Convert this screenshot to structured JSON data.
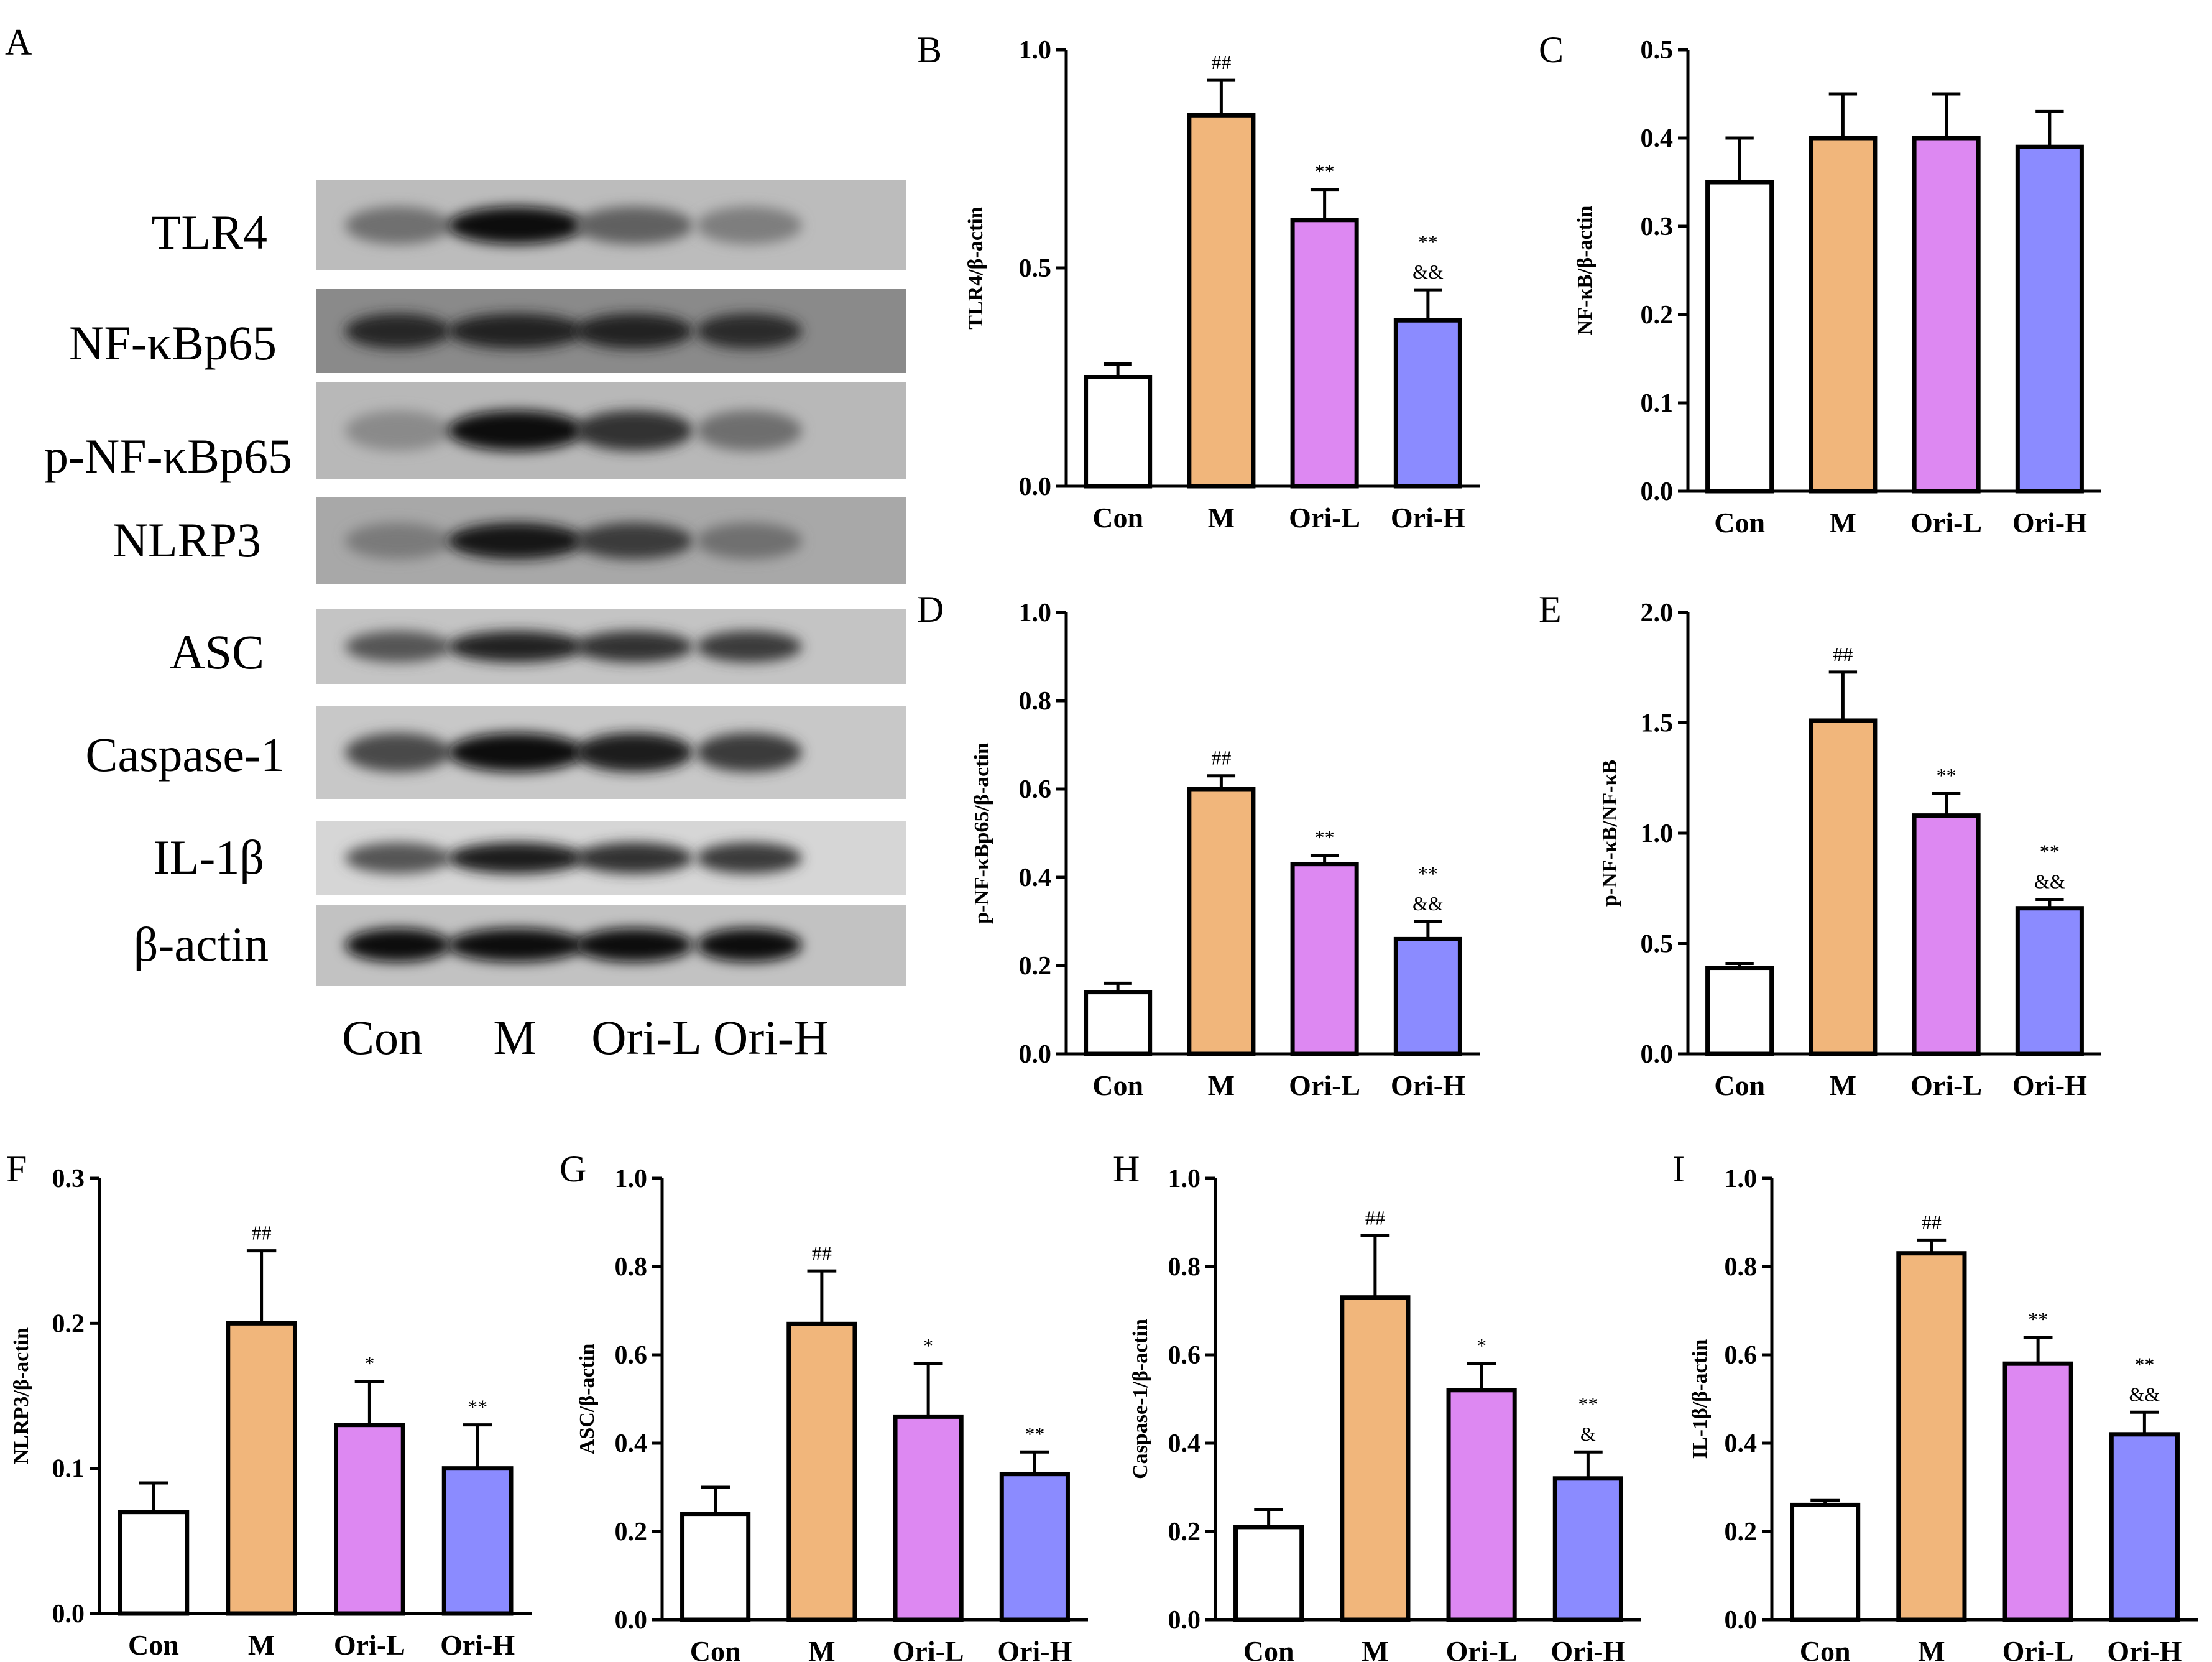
{
  "colors": {
    "Con": "#ffffff",
    "M": "#f1b67b",
    "Ori-L": "#dd88f2",
    "Ori-H": "#8b8bff",
    "axis": "#000000"
  },
  "blot": {
    "letter": "A",
    "bands": [
      "TLR4",
      "NF-κBp65",
      "p-NF-κBp65",
      "NLRP3",
      "ASC",
      "Caspase-1",
      "IL-1β",
      "β-actin"
    ],
    "lanes": [
      "Con",
      "M",
      "Ori-L",
      "Ori-H"
    ]
  },
  "chart_data": [
    {
      "id": "B",
      "letter": "B",
      "type": "bar",
      "categories": [
        "Con",
        "M",
        "Ori-L",
        "Ori-H"
      ],
      "values": [
        0.25,
        0.85,
        0.61,
        0.38
      ],
      "errors": [
        0.03,
        0.08,
        0.07,
        0.07
      ],
      "annotations": [
        [],
        [
          "##"
        ],
        [
          "**"
        ],
        [
          "&&",
          "**"
        ]
      ],
      "ylabel": "TLR4/β-actin",
      "ylim": [
        0,
        1.0
      ],
      "yticks": [
        0,
        0.5,
        1.0
      ],
      "ytick_labels": [
        "0.0",
        "0.5",
        "1.0"
      ]
    },
    {
      "id": "C",
      "letter": "C",
      "type": "bar",
      "categories": [
        "Con",
        "M",
        "Ori-L",
        "Ori-H"
      ],
      "values": [
        0.35,
        0.4,
        0.4,
        0.39
      ],
      "errors": [
        0.05,
        0.05,
        0.05,
        0.04
      ],
      "annotations": [
        [],
        [],
        [],
        []
      ],
      "ylabel": "NF-κB/β-actin",
      "ylim": [
        0,
        0.5
      ],
      "yticks": [
        0,
        0.1,
        0.2,
        0.3,
        0.4,
        0.5
      ],
      "ytick_labels": [
        "0.0",
        "0.1",
        "0.2",
        "0.3",
        "0.4",
        "0.5"
      ]
    },
    {
      "id": "D",
      "letter": "D",
      "type": "bar",
      "categories": [
        "Con",
        "M",
        "Ori-L",
        "Ori-H"
      ],
      "values": [
        0.14,
        0.6,
        0.43,
        0.26
      ],
      "errors": [
        0.02,
        0.03,
        0.02,
        0.04
      ],
      "annotations": [
        [],
        [
          "##"
        ],
        [
          "**"
        ],
        [
          "&&",
          "**"
        ]
      ],
      "ylabel": "p-NF-κBp65/β-actin",
      "ylim": [
        0,
        1.0
      ],
      "yticks": [
        0,
        0.2,
        0.4,
        0.6,
        0.8,
        1.0
      ],
      "ytick_labels": [
        "0.0",
        "0.2",
        "0.4",
        "0.6",
        "0.8",
        "1.0"
      ]
    },
    {
      "id": "E",
      "letter": "E",
      "type": "bar",
      "categories": [
        "Con",
        "M",
        "Ori-L",
        "Ori-H"
      ],
      "values": [
        0.39,
        1.51,
        1.08,
        0.66
      ],
      "errors": [
        0.02,
        0.22,
        0.1,
        0.04
      ],
      "annotations": [
        [],
        [
          "##"
        ],
        [
          "**"
        ],
        [
          "&&",
          "**"
        ]
      ],
      "ylabel": "p-NF-κB/NF-κB",
      "ylim": [
        0,
        2.0
      ],
      "yticks": [
        0,
        0.5,
        1.0,
        1.5,
        2.0
      ],
      "ytick_labels": [
        "0.0",
        "0.5",
        "1.0",
        "1.5",
        "2.0"
      ]
    },
    {
      "id": "F",
      "letter": "F",
      "type": "bar",
      "categories": [
        "Con",
        "M",
        "Ori-L",
        "Ori-H"
      ],
      "values": [
        0.07,
        0.2,
        0.13,
        0.1
      ],
      "errors": [
        0.02,
        0.05,
        0.03,
        0.03
      ],
      "annotations": [
        [],
        [
          "##"
        ],
        [
          "*"
        ],
        [
          "**"
        ]
      ],
      "ylabel": "NLRP3/β-actin",
      "ylim": [
        0,
        0.3
      ],
      "yticks": [
        0,
        0.1,
        0.2,
        0.3
      ],
      "ytick_labels": [
        "0.0",
        "0.1",
        "0.2",
        "0.3"
      ]
    },
    {
      "id": "G",
      "letter": "G",
      "type": "bar",
      "categories": [
        "Con",
        "M",
        "Ori-L",
        "Ori-H"
      ],
      "values": [
        0.24,
        0.67,
        0.46,
        0.33
      ],
      "errors": [
        0.06,
        0.12,
        0.12,
        0.05
      ],
      "annotations": [
        [],
        [
          "##"
        ],
        [
          "*"
        ],
        [
          "**"
        ]
      ],
      "ylabel": "ASC/β-actin",
      "ylim": [
        0,
        1.0
      ],
      "yticks": [
        0,
        0.2,
        0.4,
        0.6,
        0.8,
        1.0
      ],
      "ytick_labels": [
        "0.0",
        "0.2",
        "0.4",
        "0.6",
        "0.8",
        "1.0"
      ]
    },
    {
      "id": "H",
      "letter": "H",
      "type": "bar",
      "categories": [
        "Con",
        "M",
        "Ori-L",
        "Ori-H"
      ],
      "values": [
        0.21,
        0.73,
        0.52,
        0.32
      ],
      "errors": [
        0.04,
        0.14,
        0.06,
        0.06
      ],
      "annotations": [
        [],
        [
          "##"
        ],
        [
          "*"
        ],
        [
          "&",
          "**"
        ]
      ],
      "ylabel": "Caspase-1/β-actin",
      "ylim": [
        0,
        1.0
      ],
      "yticks": [
        0,
        0.2,
        0.4,
        0.6,
        0.8,
        1.0
      ],
      "ytick_labels": [
        "0.0",
        "0.2",
        "0.4",
        "0.6",
        "0.8",
        "1.0"
      ]
    },
    {
      "id": "I",
      "letter": "I",
      "type": "bar",
      "categories": [
        "Con",
        "M",
        "Ori-L",
        "Ori-H"
      ],
      "values": [
        0.26,
        0.83,
        0.58,
        0.42
      ],
      "errors": [
        0.01,
        0.03,
        0.06,
        0.05
      ],
      "annotations": [
        [],
        [
          "##"
        ],
        [
          "**"
        ],
        [
          "&&",
          "**"
        ]
      ],
      "ylabel": "IL-1β/β-actin",
      "ylim": [
        0,
        1.0
      ],
      "yticks": [
        0,
        0.2,
        0.4,
        0.6,
        0.8,
        1.0
      ],
      "ytick_labels": [
        "0.0",
        "0.2",
        "0.4",
        "0.6",
        "0.8",
        "1.0"
      ]
    }
  ]
}
